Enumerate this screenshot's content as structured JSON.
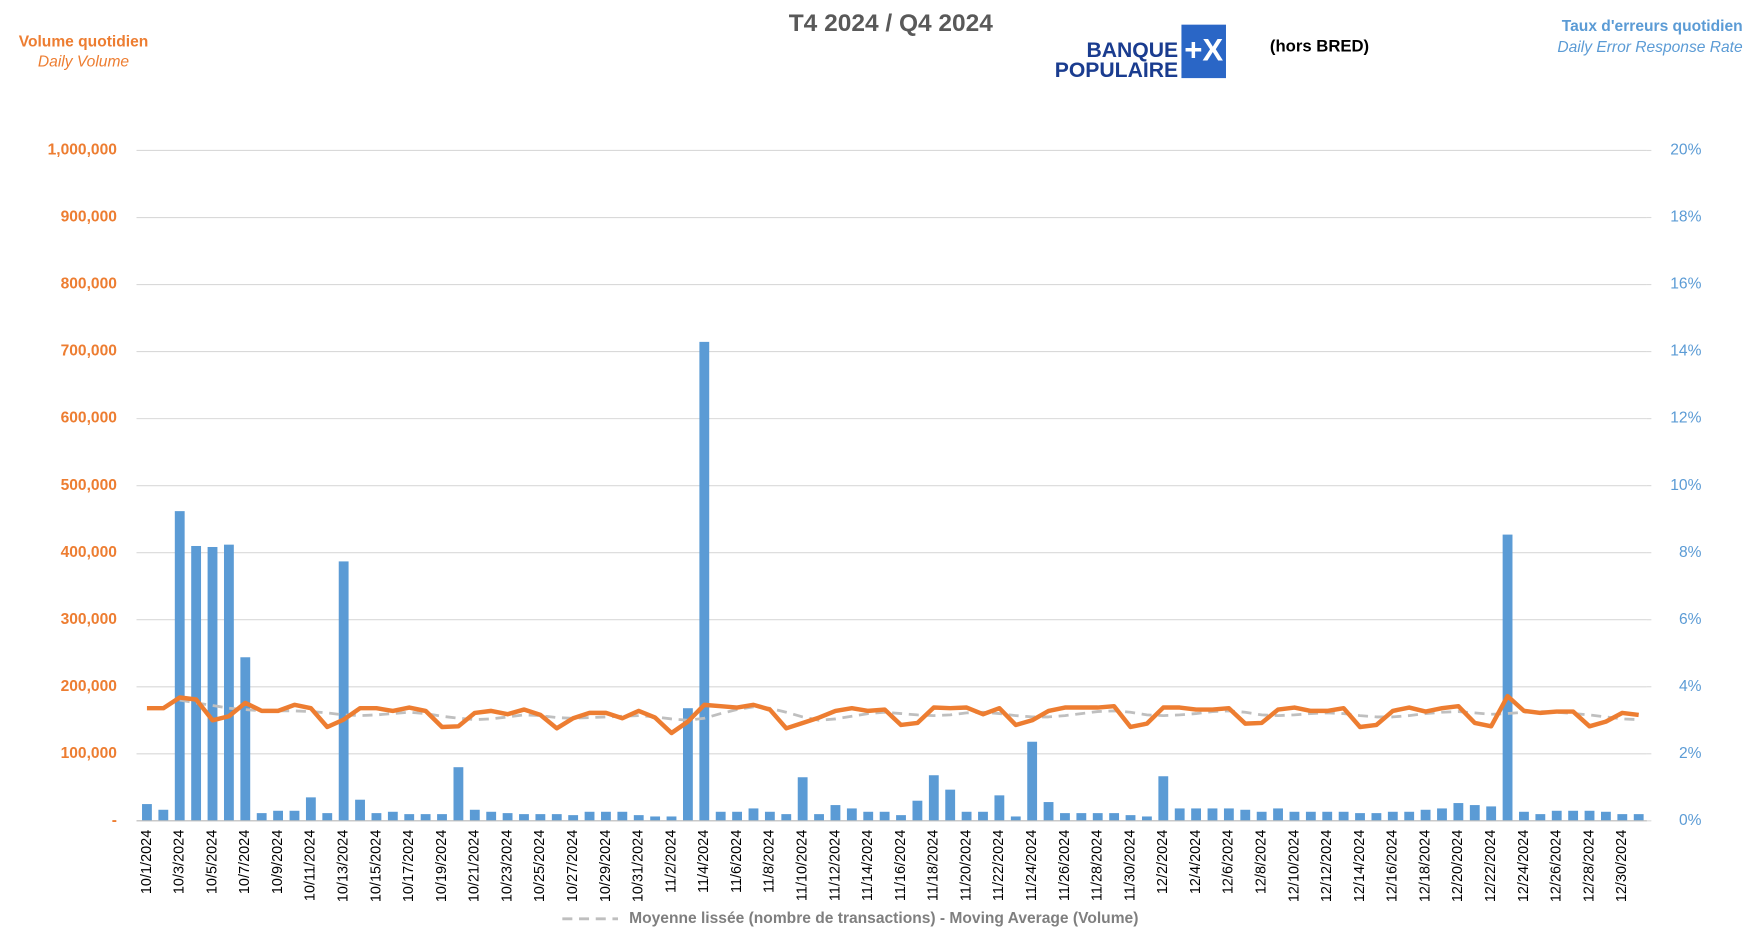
{
  "chart_data": {
    "type": "bar_line",
    "title": "T4 2024 / Q4 2024",
    "note": "(hors BRED)",
    "logo": [
      "BANQUE",
      "POPULAIRE",
      "+X"
    ],
    "y_label": [
      "Volume quotidien",
      "Daily Volume"
    ],
    "y2_label": [
      "Taux d'erreurs quotidien",
      "Daily Error Response Rate"
    ],
    "categories": [
      "10/1/2024",
      null,
      "10/3/2024",
      null,
      "10/5/2024",
      null,
      "10/7/2024",
      null,
      "10/9/2024",
      null,
      "10/11/2024",
      null,
      "10/13/2024",
      null,
      "10/15/2024",
      null,
      "10/17/2024",
      null,
      "10/19/2024",
      null,
      "10/21/2024",
      null,
      "10/23/2024",
      null,
      "10/25/2024",
      null,
      "10/27/2024",
      null,
      "10/29/2024",
      null,
      "10/31/2024",
      null,
      "11/2/2024",
      null,
      "11/4/2024",
      null,
      "11/6/2024",
      null,
      "11/8/2024",
      null,
      "11/10/2024",
      null,
      "11/12/2024",
      null,
      "11/14/2024",
      null,
      "11/16/2024",
      null,
      "11/18/2024",
      null,
      "11/20/2024",
      null,
      "11/22/2024",
      null,
      "11/24/2024",
      null,
      "11/26/2024",
      null,
      "11/28/2024",
      null,
      "11/30/2024",
      null,
      "12/2/2024",
      null,
      "12/4/2024",
      null,
      "12/6/2024",
      null,
      "12/8/2024",
      null,
      "12/10/2024",
      null,
      "12/12/2024",
      null,
      "12/14/2024",
      null,
      "12/16/2024",
      null,
      "12/18/2024",
      null,
      "12/20/2024",
      null,
      "12/22/2024",
      null,
      "12/24/2024",
      null,
      "12/26/2024",
      null,
      "12/28/2024",
      null,
      "12/30/2024",
      null
    ],
    "series": [
      {
        "kind": "bar",
        "axis": "y2",
        "color": "#5B9BD5",
        "values": [
          0.5,
          0.33,
          9.24,
          8.2,
          8.17,
          8.24,
          4.88,
          0.23,
          0.3,
          0.3,
          0.7,
          0.23,
          7.74,
          0.63,
          0.23,
          0.27,
          0.2,
          0.2,
          0.2,
          1.6,
          0.33,
          0.27,
          0.23,
          0.2,
          0.2,
          0.2,
          0.17,
          0.27,
          0.27,
          0.27,
          0.17,
          0.13,
          0.13,
          3.36,
          14.29,
          0.27,
          0.27,
          0.37,
          0.27,
          0.2,
          1.3,
          0.2,
          0.47,
          0.37,
          0.27,
          0.27,
          0.17,
          0.6,
          1.36,
          0.93,
          0.27,
          0.27,
          0.76,
          0.13,
          2.36,
          0.56,
          0.23,
          0.23,
          0.23,
          0.23,
          0.17,
          0.13,
          1.33,
          0.37,
          0.37,
          0.37,
          0.37,
          0.33,
          0.27,
          0.37,
          0.27,
          0.27,
          0.27,
          0.27,
          0.23,
          0.23,
          0.27,
          0.27,
          0.33,
          0.37,
          0.53,
          0.47,
          0.43,
          8.54,
          0.27,
          0.2,
          0.3,
          0.3,
          0.3,
          0.27,
          0.2,
          0.2
        ]
      },
      {
        "kind": "line",
        "axis": "y",
        "color": "#ED7D31",
        "dashed": false,
        "values": [
          168000,
          168000,
          184000,
          181000,
          150000,
          156000,
          176000,
          164000,
          164000,
          173000,
          168000,
          140000,
          151000,
          168000,
          168000,
          164000,
          169000,
          164000,
          140000,
          141000,
          161000,
          164000,
          159000,
          166000,
          158000,
          138000,
          153000,
          161000,
          161000,
          153000,
          164000,
          154000,
          131000,
          148000,
          173000,
          171000,
          169000,
          173000,
          166000,
          138000,
          146000,
          154000,
          164000,
          168000,
          164000,
          166000,
          143000,
          146000,
          169000,
          168000,
          169000,
          159000,
          168000,
          143000,
          150000,
          164000,
          169000,
          169000,
          169000,
          171000,
          140000,
          145000,
          169000,
          169000,
          166000,
          166000,
          168000,
          145000,
          146000,
          166000,
          169000,
          164000,
          164000,
          168000,
          140000,
          143000,
          164000,
          169000,
          163000,
          168000,
          171000,
          146000,
          141000,
          186000,
          164000,
          161000,
          163000,
          163000,
          141000,
          148000,
          161000,
          158000
        ]
      },
      {
        "kind": "line",
        "axis": "y",
        "color": "#BFBFBF",
        "dashed": true,
        "name": "Moyenne lissée (nombre de transactions) - Moving Average (Volume)",
        "values": [
          null,
          null,
          180000,
          176000,
          172000,
          168000,
          166000,
          164000,
          164000,
          164000,
          163000,
          161000,
          158000,
          157000,
          158000,
          160000,
          162000,
          160000,
          156000,
          153000,
          151000,
          152000,
          155000,
          158000,
          157000,
          154000,
          153000,
          154000,
          155000,
          156000,
          157000,
          155000,
          152000,
          150000,
          153000,
          160000,
          166000,
          170000,
          168000,
          162000,
          155000,
          150000,
          152000,
          156000,
          160000,
          162000,
          160000,
          158000,
          157000,
          158000,
          161000,
          162000,
          160000,
          157000,
          155000,
          155000,
          157000,
          160000,
          163000,
          164000,
          162000,
          158000,
          157000,
          158000,
          160000,
          163000,
          164000,
          162000,
          158000,
          157000,
          158000,
          160000,
          161000,
          160000,
          157000,
          155000,
          155000,
          157000,
          160000,
          162000,
          163000,
          161000,
          159000,
          160000,
          162000,
          163000,
          162000,
          160000,
          158000,
          155000,
          152000,
          151000
        ]
      }
    ],
    "ylim": [
      0,
      1000000
    ],
    "yticks": [
      {
        "value": 0,
        "label": "-"
      },
      {
        "value": 100000,
        "label": "100,000"
      },
      {
        "value": 200000,
        "label": "200,000"
      },
      {
        "value": 300000,
        "label": "300,000"
      },
      {
        "value": 400000,
        "label": "400,000"
      },
      {
        "value": 500000,
        "label": "500,000"
      },
      {
        "value": 600000,
        "label": "600,000"
      },
      {
        "value": 700000,
        "label": "700,000"
      },
      {
        "value": 800000,
        "label": "800,000"
      },
      {
        "value": 900000,
        "label": "900,000"
      },
      {
        "value": 1000000,
        "label": "1,000,000"
      }
    ],
    "y2lim": [
      0,
      20
    ],
    "y2ticks": [
      {
        "value": 0,
        "label": "0%"
      },
      {
        "value": 2,
        "label": "2%"
      },
      {
        "value": 4,
        "label": "4%"
      },
      {
        "value": 6,
        "label": "6%"
      },
      {
        "value": 8,
        "label": "8%"
      },
      {
        "value": 10,
        "label": "10%"
      },
      {
        "value": 12,
        "label": "12%"
      },
      {
        "value": 14,
        "label": "14%"
      },
      {
        "value": 16,
        "label": "16%"
      },
      {
        "value": 18,
        "label": "18%"
      },
      {
        "value": 20,
        "label": "20%"
      }
    ],
    "grid": true,
    "legend": "bottom"
  }
}
